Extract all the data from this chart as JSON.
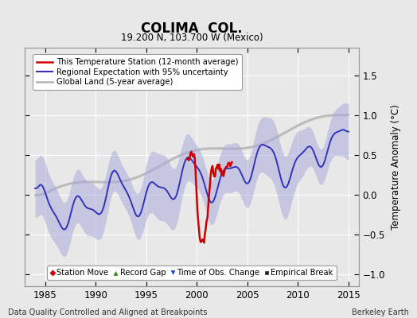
{
  "title": "COLIMA  COL.",
  "subtitle": "19.200 N, 103.700 W (Mexico)",
  "xlabel_left": "Data Quality Controlled and Aligned at Breakpoints",
  "xlabel_right": "Berkeley Earth",
  "ylabel": "Temperature Anomaly (°C)",
  "xlim": [
    1983,
    2016
  ],
  "ylim": [
    -1.15,
    1.85
  ],
  "yticks": [
    -1,
    -0.5,
    0,
    0.5,
    1,
    1.5
  ],
  "xticks": [
    1985,
    1990,
    1995,
    2000,
    2005,
    2010,
    2015
  ],
  "bg_color": "#e8e8e8",
  "plot_bg_color": "#e8e8e8",
  "grid_color": "#ffffff",
  "station_color": "#cc0000",
  "regional_color": "#3333bb",
  "global_color": "#bbbbbb",
  "fill_color": "#aaaadd",
  "fill_alpha": 0.55,
  "legend_items": [
    {
      "label": "This Temperature Station (12-month average)",
      "color": "#cc0000",
      "lw": 1.8
    },
    {
      "label": "Regional Expectation with 95% uncertainty",
      "color": "#3333bb",
      "lw": 1.5
    },
    {
      "label": "Global Land (5-year average)",
      "color": "#bbbbbb",
      "lw": 2.0
    }
  ],
  "marker_items": [
    {
      "label": "Station Move",
      "color": "#cc0000",
      "marker": "D"
    },
    {
      "label": "Record Gap",
      "color": "#228800",
      "marker": "^"
    },
    {
      "label": "Time of Obs. Change",
      "color": "#2244cc",
      "marker": "v"
    },
    {
      "label": "Empirical Break",
      "color": "#222222",
      "marker": "s"
    }
  ]
}
